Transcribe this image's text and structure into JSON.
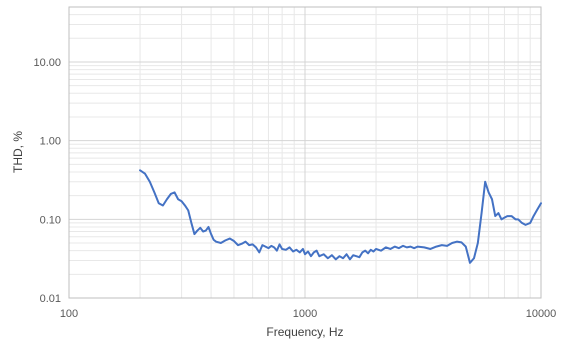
{
  "chart_data": {
    "type": "line",
    "title": "",
    "xlabel": "Frequency, Hz",
    "ylabel": "THD, %",
    "x_scale": "log",
    "y_scale": "log",
    "xlim": [
      100,
      10000
    ],
    "ylim": [
      0.01,
      50
    ],
    "x_ticks": [
      "100",
      "1000",
      "10000"
    ],
    "y_ticks": [
      "0.01",
      "0.10",
      "1.00",
      "10.00"
    ],
    "grid": true,
    "legend": "none",
    "line_color": "#4472c4",
    "series": [
      {
        "x": [
          200,
          210,
          220,
          230,
          240,
          250,
          260,
          270,
          280,
          290,
          300,
          310,
          320,
          330,
          340,
          350,
          360,
          370,
          380,
          390,
          400,
          410,
          420,
          440,
          460,
          480,
          500,
          520,
          540,
          560,
          580,
          600,
          620,
          640,
          660,
          680,
          700,
          720,
          740,
          760,
          780,
          800,
          830,
          860,
          890,
          920,
          950,
          980,
          1000,
          1030,
          1060,
          1090,
          1120,
          1150,
          1200,
          1250,
          1300,
          1350,
          1400,
          1450,
          1500,
          1550,
          1600,
          1650,
          1700,
          1750,
          1800,
          1850,
          1900,
          1950,
          2000,
          2100,
          2200,
          2300,
          2400,
          2500,
          2600,
          2700,
          2800,
          2900,
          3000,
          3200,
          3400,
          3600,
          3800,
          4000,
          4200,
          4400,
          4600,
          4800,
          5000,
          5200,
          5400,
          5600,
          5800,
          6000,
          6200,
          6400,
          6600,
          6800,
          7000,
          7200,
          7500,
          7800,
          8000,
          8300,
          8600,
          9000,
          9300,
          9600,
          10000
        ],
        "y": [
          0.42,
          0.38,
          0.3,
          0.22,
          0.16,
          0.15,
          0.18,
          0.21,
          0.22,
          0.18,
          0.17,
          0.15,
          0.13,
          0.09,
          0.065,
          0.072,
          0.078,
          0.07,
          0.072,
          0.08,
          0.065,
          0.055,
          0.052,
          0.05,
          0.054,
          0.057,
          0.053,
          0.047,
          0.049,
          0.052,
          0.047,
          0.048,
          0.044,
          0.038,
          0.047,
          0.045,
          0.043,
          0.046,
          0.044,
          0.04,
          0.048,
          0.042,
          0.041,
          0.044,
          0.039,
          0.041,
          0.038,
          0.042,
          0.036,
          0.039,
          0.034,
          0.038,
          0.04,
          0.034,
          0.036,
          0.032,
          0.035,
          0.031,
          0.034,
          0.032,
          0.036,
          0.031,
          0.035,
          0.034,
          0.033,
          0.038,
          0.04,
          0.037,
          0.041,
          0.039,
          0.042,
          0.04,
          0.044,
          0.042,
          0.045,
          0.043,
          0.046,
          0.044,
          0.045,
          0.043,
          0.045,
          0.044,
          0.042,
          0.045,
          0.047,
          0.046,
          0.05,
          0.052,
          0.051,
          0.045,
          0.028,
          0.032,
          0.05,
          0.12,
          0.3,
          0.22,
          0.18,
          0.11,
          0.12,
          0.1,
          0.105,
          0.11,
          0.11,
          0.1,
          0.1,
          0.09,
          0.085,
          0.09,
          0.11,
          0.13,
          0.16
        ]
      }
    ]
  }
}
